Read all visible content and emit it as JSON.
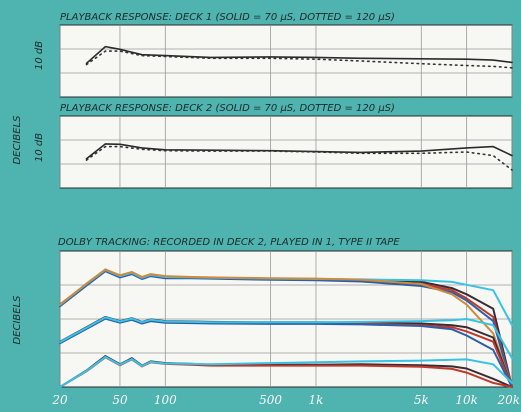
{
  "figure": {
    "y_axis_label": "DECIBELS",
    "x_tick_labels": [
      "20",
      "50",
      "100",
      "500",
      "1k",
      "5k",
      "10k",
      "20k"
    ]
  },
  "chart_data": [
    {
      "type": "line",
      "title": "PLAYBACK RESPONSE: DECK 1 (SOLID = 70 µS, DOTTED = 120 µS)",
      "xlabel": "",
      "ylabel": "DECIBELS",
      "scale_label": "10 dB",
      "x_scale": "log",
      "xlim": [
        20,
        20000
      ],
      "ylim": [
        -8,
        8
      ],
      "grid": true,
      "x": [
        30,
        40,
        50,
        70,
        100,
        200,
        500,
        1000,
        2000,
        5000,
        10000,
        15000,
        20000
      ],
      "series": [
        {
          "name": "SOLID = 70 µS",
          "style": "solid",
          "color": "#2b2b2b",
          "values": [
            -0.5,
            3.2,
            2.6,
            1.4,
            1.2,
            0.8,
            0.9,
            0.8,
            0.6,
            0.5,
            0.4,
            0.2,
            -0.3
          ]
        },
        {
          "name": "DOTTED = 120 µS",
          "style": "dotted",
          "color": "#333333",
          "values": [
            -0.8,
            2.2,
            2.2,
            1.2,
            1.0,
            0.6,
            0.6,
            0.4,
            0.0,
            -0.6,
            -1.0,
            -1.2,
            -1.5
          ]
        }
      ]
    },
    {
      "type": "line",
      "title": "PLAYBACK RESPONSE: DECK 2 (SOLID = 70 µS, DOTTED = 120 µS)",
      "xlabel": "",
      "ylabel": "",
      "scale_label": "10 dB",
      "x_scale": "log",
      "xlim": [
        20,
        20000
      ],
      "ylim": [
        -8,
        8
      ],
      "grid": true,
      "x": [
        30,
        40,
        50,
        70,
        100,
        200,
        500,
        1000,
        2000,
        5000,
        10000,
        15000,
        20000
      ],
      "series": [
        {
          "name": "SOLID = 70 µS",
          "style": "solid",
          "color": "#2b2b2b",
          "values": [
            -1.5,
            1.8,
            1.7,
            0.9,
            0.5,
            0.4,
            0.3,
            0.1,
            -0.1,
            0.2,
            0.9,
            1.2,
            -0.8
          ]
        },
        {
          "name": "DOTTED = 120 µS",
          "style": "dotted",
          "color": "#333333",
          "values": [
            -1.8,
            1.2,
            1.2,
            0.6,
            0.3,
            0.2,
            0.2,
            0.0,
            -0.3,
            -0.3,
            0.0,
            -0.8,
            -4.0
          ]
        }
      ]
    },
    {
      "type": "line",
      "title": "DOLBY TRACKING: RECORDED IN DECK 2, PLAYED IN 1, TYPE II TAPE",
      "xlabel": "",
      "ylabel": "DECIBELS",
      "x_scale": "log",
      "xlim": [
        20,
        20000
      ],
      "ylim": [
        -25,
        8
      ],
      "grid": true,
      "x": [
        20,
        30,
        40,
        50,
        60,
        70,
        80,
        100,
        150,
        200,
        500,
        1000,
        2000,
        5000,
        8000,
        10000,
        15000,
        20000
      ],
      "series": [
        {
          "color": "#3a2c36",
          "values": [
            -5,
            0,
            3.5,
            2,
            2.8,
            1.6,
            2.3,
            1.8,
            1.6,
            1.5,
            1.3,
            1.2,
            1.0,
            0.5,
            -1.0,
            -2.5,
            -6.0,
            -25.0
          ]
        },
        {
          "color": "#c0392b",
          "values": [
            -5.2,
            -0.2,
            3.3,
            1.8,
            2.6,
            1.4,
            2.1,
            1.6,
            1.5,
            1.4,
            1.1,
            1.0,
            0.8,
            0.0,
            -1.5,
            -3.5,
            -8.0,
            -25.0
          ]
        },
        {
          "color": "#2f5fa8",
          "values": [
            -5.4,
            -0.4,
            3.1,
            1.6,
            2.4,
            1.2,
            1.9,
            1.4,
            1.4,
            1.3,
            1.0,
            0.9,
            0.6,
            -0.5,
            -2.0,
            -4.0,
            -9.0,
            -25.0
          ]
        },
        {
          "color": "#36c3e6",
          "values": [
            -5.1,
            0.0,
            3.4,
            1.9,
            2.7,
            1.5,
            2.2,
            1.7,
            1.6,
            1.5,
            1.3,
            1.2,
            1.1,
            0.9,
            0.5,
            -0.2,
            -1.5,
            -10.0
          ]
        },
        {
          "color": "#d08a3a",
          "values": [
            -5.0,
            0.1,
            3.5,
            2.1,
            2.9,
            1.7,
            2.4,
            1.9,
            1.7,
            1.6,
            1.4,
            1.3,
            1.0,
            0.0,
            -2.5,
            -5.0,
            -12.0,
            -25.0
          ]
        },
        {
          "color": "#3a2c36",
          "values": [
            -14,
            -10.5,
            -8.0,
            -9.0,
            -8.3,
            -9.2,
            -8.6,
            -9.0,
            -9.1,
            -9.2,
            -9.3,
            -9.3,
            -9.4,
            -9.6,
            -10.0,
            -10.5,
            -13.0,
            -25.0
          ]
        },
        {
          "color": "#c0392b",
          "values": [
            -14.2,
            -10.7,
            -8.2,
            -9.2,
            -8.5,
            -9.4,
            -8.8,
            -9.2,
            -9.3,
            -9.4,
            -9.5,
            -9.5,
            -9.6,
            -10.0,
            -10.5,
            -11.5,
            -14.0,
            -25.0
          ]
        },
        {
          "color": "#2f5fa8",
          "values": [
            -14.4,
            -10.9,
            -8.4,
            -9.4,
            -8.7,
            -9.6,
            -9.0,
            -9.4,
            -9.5,
            -9.6,
            -9.7,
            -9.7,
            -9.8,
            -10.2,
            -11.0,
            -12.5,
            -16.0,
            -25.0
          ]
        },
        {
          "color": "#36c3e6",
          "values": [
            -14.1,
            -10.6,
            -8.1,
            -9.1,
            -8.4,
            -9.3,
            -8.7,
            -9.1,
            -9.2,
            -9.3,
            -9.3,
            -9.3,
            -9.2,
            -9.0,
            -8.8,
            -8.5,
            -10.0,
            -18.0
          ]
        },
        {
          "color": "#3a2c36",
          "values": [
            -25,
            -21,
            -17.5,
            -19.5,
            -18.0,
            -19.8,
            -18.8,
            -19.2,
            -19.4,
            -19.6,
            -19.6,
            -19.6,
            -19.5,
            -19.7,
            -20.0,
            -20.5,
            -23.0,
            -25.0
          ]
        },
        {
          "color": "#c0392b",
          "values": [
            -25,
            -21.2,
            -17.8,
            -19.7,
            -18.3,
            -20.0,
            -19.0,
            -19.4,
            -19.6,
            -19.8,
            -19.8,
            -19.8,
            -19.8,
            -20.1,
            -20.6,
            -21.5,
            -24.0,
            -25.0
          ]
        },
        {
          "color": "#36c3e6",
          "values": [
            -25,
            -21.1,
            -17.7,
            -19.6,
            -18.2,
            -19.9,
            -18.9,
            -19.3,
            -19.4,
            -19.5,
            -19.2,
            -19.0,
            -18.8,
            -18.6,
            -18.4,
            -18.3,
            -19.5,
            -24.0
          ]
        }
      ]
    }
  ]
}
